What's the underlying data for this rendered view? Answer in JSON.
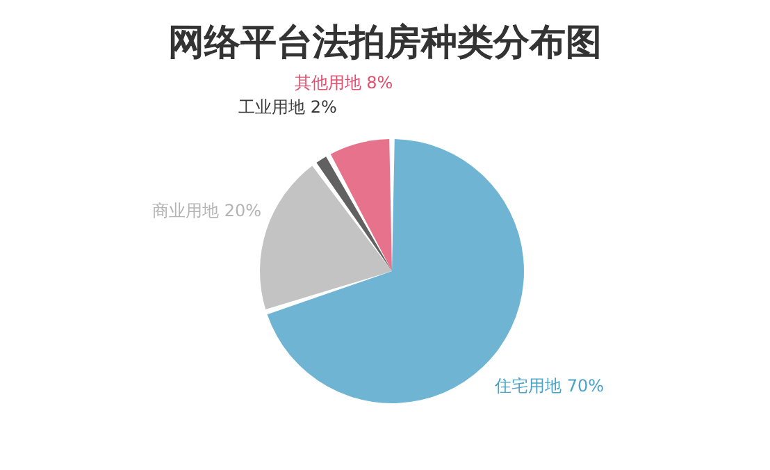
{
  "chart_data": {
    "type": "pie",
    "title": "网络平台法拍房种类分布图",
    "categories": [
      "住宅用地",
      "商业用地",
      "工业用地",
      "其他用地"
    ],
    "values": [
      70,
      20,
      2,
      8
    ],
    "value_labels": [
      "70%",
      "20%",
      "2%",
      "8%"
    ],
    "colors": [
      "#4ba3c8",
      "#b4b4b4",
      "#3a3a3a",
      "#e0506e"
    ],
    "legend": false
  }
}
